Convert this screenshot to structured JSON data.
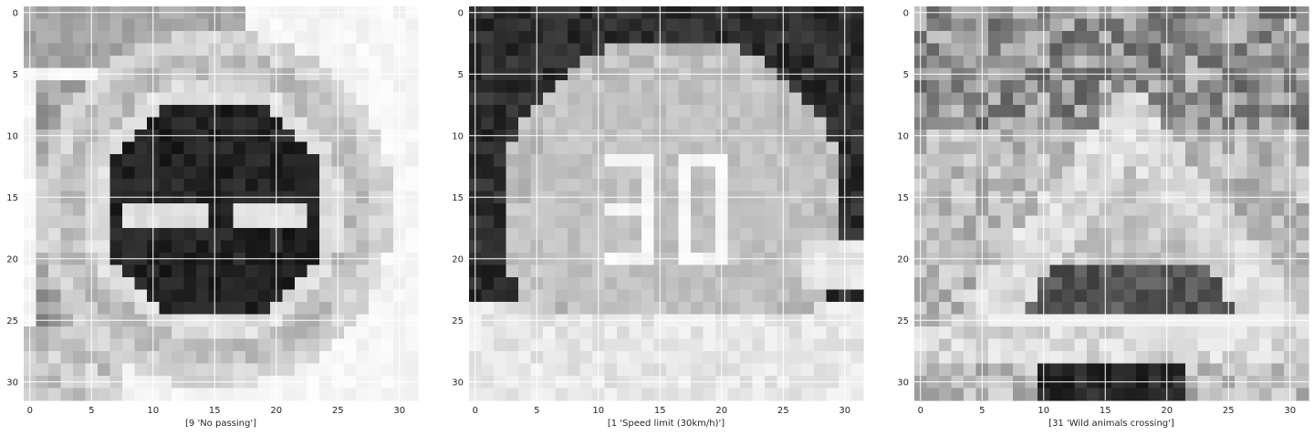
{
  "chart_data": [
    {
      "type": "image",
      "xlabel": "[9 'No passing']",
      "xlim": [
        -0.5,
        31.5
      ],
      "ylim": [
        31.5,
        -0.5
      ],
      "xticks": [
        0,
        5,
        10,
        15,
        20,
        25,
        30
      ],
      "yticks": [
        0,
        5,
        10,
        15,
        20,
        25,
        30
      ],
      "xtick_labels": [
        "0",
        "5",
        "10",
        "15",
        "20",
        "25",
        "30"
      ],
      "ytick_labels": [
        "0",
        "5",
        "10",
        "15",
        "20",
        "25",
        "30"
      ],
      "grid": true,
      "colormap": "gray",
      "sign": "no-passing"
    },
    {
      "type": "image",
      "xlabel": "[1 'Speed limit (30km/h)']",
      "xlim": [
        -0.5,
        31.5
      ],
      "ylim": [
        31.5,
        -0.5
      ],
      "xticks": [
        0,
        5,
        10,
        15,
        20,
        25,
        30
      ],
      "yticks": [
        0,
        5,
        10,
        15,
        20,
        25,
        30
      ],
      "xtick_labels": [
        "0",
        "5",
        "10",
        "15",
        "20",
        "25",
        "30"
      ],
      "ytick_labels": [
        "0",
        "5",
        "10",
        "15",
        "20",
        "25",
        "30"
      ],
      "grid": true,
      "colormap": "gray",
      "sign": "speed-30",
      "sign_text": "30"
    },
    {
      "type": "image",
      "xlabel": "[31 'Wild animals crossing']",
      "xlim": [
        -0.5,
        31.5
      ],
      "ylim": [
        31.5,
        -0.5
      ],
      "xticks": [
        0,
        5,
        10,
        15,
        20,
        25,
        30
      ],
      "yticks": [
        0,
        5,
        10,
        15,
        20,
        25,
        30
      ],
      "xtick_labels": [
        "0",
        "5",
        "10",
        "15",
        "20",
        "25",
        "30"
      ],
      "ytick_labels": [
        "0",
        "5",
        "10",
        "15",
        "20",
        "25",
        "30"
      ],
      "grid": true,
      "colormap": "gray",
      "sign": "wild-animals"
    }
  ]
}
